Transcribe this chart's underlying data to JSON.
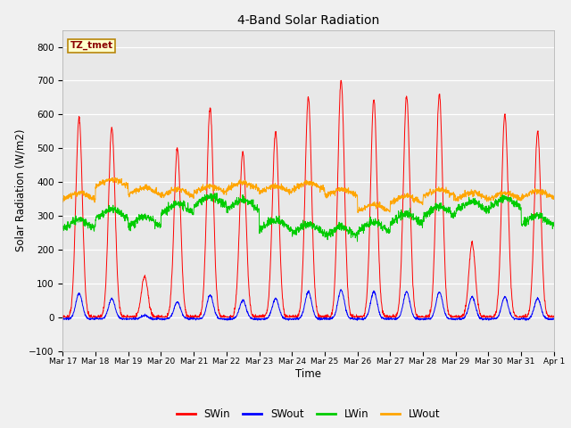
{
  "title": "4-Band Solar Radiation",
  "xlabel": "Time",
  "ylabel": "Solar Radiation (W/m2)",
  "ylim": [
    -100,
    850
  ],
  "yticks": [
    -100,
    0,
    100,
    200,
    300,
    400,
    500,
    600,
    700,
    800
  ],
  "background_color": "#f0f0f0",
  "plot_bg_color": "#e8e8e8",
  "legend_label": "TZ_tmet",
  "series_colors": {
    "SWin": "#ff0000",
    "SWout": "#0000ff",
    "LWin": "#00cc00",
    "LWout": "#ffa500"
  },
  "x_tick_labels": [
    "Mar 17",
    "Mar 18",
    "Mar 19",
    "Mar 20",
    "Mar 21",
    "Mar 22",
    "Mar 23",
    "Mar 24",
    "Mar 25",
    "Mar 26",
    "Mar 27",
    "Mar 28",
    "Mar 29",
    "Mar 30",
    "Mar 31",
    "Apr 1"
  ],
  "n_days": 15,
  "pts_per_day": 144,
  "SWin_peaks": [
    590,
    560,
    120,
    500,
    620,
    490,
    550,
    650,
    700,
    645,
    655,
    660,
    220,
    600,
    550
  ],
  "SWout_peaks": [
    75,
    60,
    10,
    50,
    70,
    55,
    60,
    80,
    85,
    80,
    80,
    80,
    65,
    65,
    60
  ],
  "LWin_base": [
    255,
    285,
    262,
    302,
    322,
    312,
    252,
    242,
    232,
    247,
    272,
    292,
    307,
    317,
    267
  ],
  "LWout_base": [
    340,
    380,
    355,
    350,
    360,
    370,
    360,
    370,
    350,
    305,
    330,
    350,
    340,
    340,
    345
  ]
}
